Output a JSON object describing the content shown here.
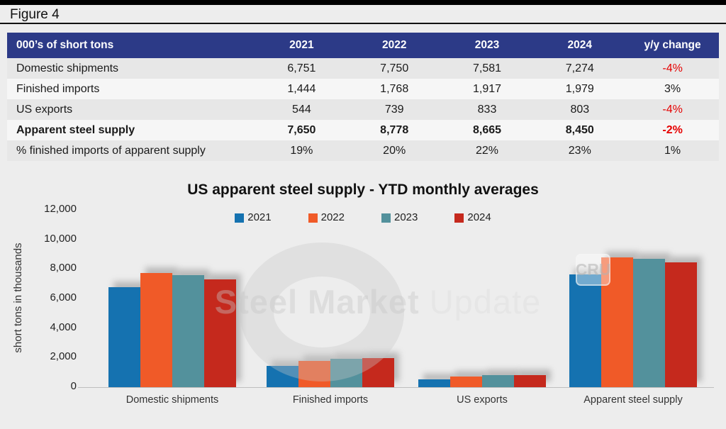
{
  "figure_label": "Figure 4",
  "table": {
    "header": [
      "000’s of short tons",
      "2021",
      "2022",
      "2023",
      "2024",
      "y/y change"
    ],
    "rows": [
      {
        "label": "Domestic shipments",
        "values": [
          "6,751",
          "7,750",
          "7,581",
          "7,274"
        ],
        "yoy": "-4%",
        "yoy_negative": true,
        "bold": false
      },
      {
        "label": "Finished imports",
        "values": [
          "1,444",
          "1,768",
          "1,917",
          "1,979"
        ],
        "yoy": "3%",
        "yoy_negative": false,
        "bold": false
      },
      {
        "label": "US exports",
        "values": [
          "544",
          "739",
          "833",
          "803"
        ],
        "yoy": "-4%",
        "yoy_negative": true,
        "bold": false
      },
      {
        "label": "Apparent steel supply",
        "values": [
          "7,650",
          "8,778",
          "8,665",
          "8,450"
        ],
        "yoy": "-2%",
        "yoy_negative": true,
        "bold": true
      },
      {
        "label": "% finished imports of apparent supply",
        "values": [
          "19%",
          "20%",
          "22%",
          "23%"
        ],
        "yoy": "1%",
        "yoy_negative": false,
        "bold": false
      }
    ]
  },
  "chart_data": {
    "type": "bar",
    "title": "US apparent steel supply - YTD monthly averages",
    "ylabel": "short tons in thousands",
    "xlabel": "",
    "categories": [
      "Domestic shipments",
      "Finished imports",
      "US exports",
      "Apparent steel supply"
    ],
    "series": [
      {
        "name": "2021",
        "color": "#1572b0",
        "values": [
          6751,
          1444,
          544,
          7650
        ]
      },
      {
        "name": "2022",
        "color": "#f05a28",
        "values": [
          7750,
          1768,
          739,
          8778
        ]
      },
      {
        "name": "2023",
        "color": "#53919c",
        "values": [
          7581,
          1917,
          833,
          8665
        ]
      },
      {
        "name": "2024",
        "color": "#c5291d",
        "values": [
          7274,
          1979,
          803,
          8450
        ]
      }
    ],
    "ylim": [
      0,
      12000
    ],
    "yticks": [
      "0",
      "2,000",
      "4,000",
      "6,000",
      "8,000",
      "10,000",
      "12,000"
    ],
    "ytick_step": 2000,
    "legend_position": "top",
    "grid": false
  },
  "watermark": {
    "text_bold": "Steel Market",
    "text_light": " Update",
    "badge": "CRU"
  },
  "colors": {
    "header_bg": "#2c3a87",
    "negative_change": "#e60000",
    "page_bg": "#ededed",
    "top_bar": "#000000"
  }
}
